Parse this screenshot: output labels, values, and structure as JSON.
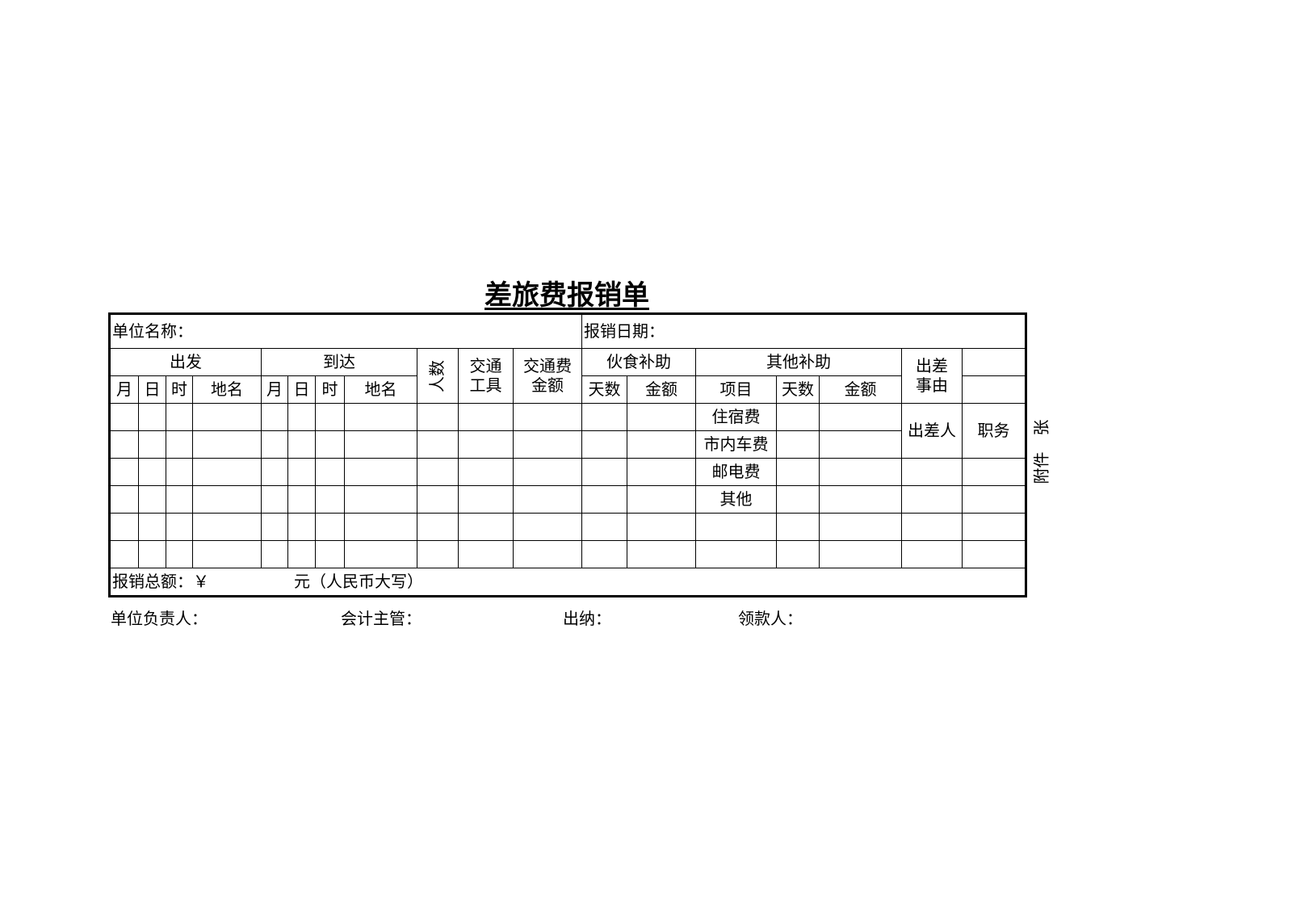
{
  "title": "差旅费报销单",
  "header": {
    "unit_name_label": "单位名称：",
    "date_label": "报销日期："
  },
  "columns": {
    "depart": "出发",
    "arrive": "到达",
    "people": "人数",
    "transport_tool": [
      "交通",
      "工具"
    ],
    "transport_amount": [
      "交通费",
      "金额"
    ],
    "meal_subsidy": "伙食补助",
    "other_subsidy": "其他补助",
    "reason": [
      "出差",
      "事由"
    ],
    "month": "月",
    "day": "日",
    "hour": "时",
    "place": "地名",
    "days": "天数",
    "amount": "金额",
    "item": "项目"
  },
  "items": [
    "住宿费",
    "市内车费",
    "邮电费",
    "其他"
  ],
  "traveler_label": "出差人",
  "position_label": "职务",
  "total": {
    "label": "报销总额：￥",
    "unit": "元（人民币大写）"
  },
  "attachment": "附件    张",
  "footer": {
    "head": "单位负责人：",
    "accountant": "会计主管：",
    "cashier": "出纳：",
    "receiver": "领款人："
  }
}
